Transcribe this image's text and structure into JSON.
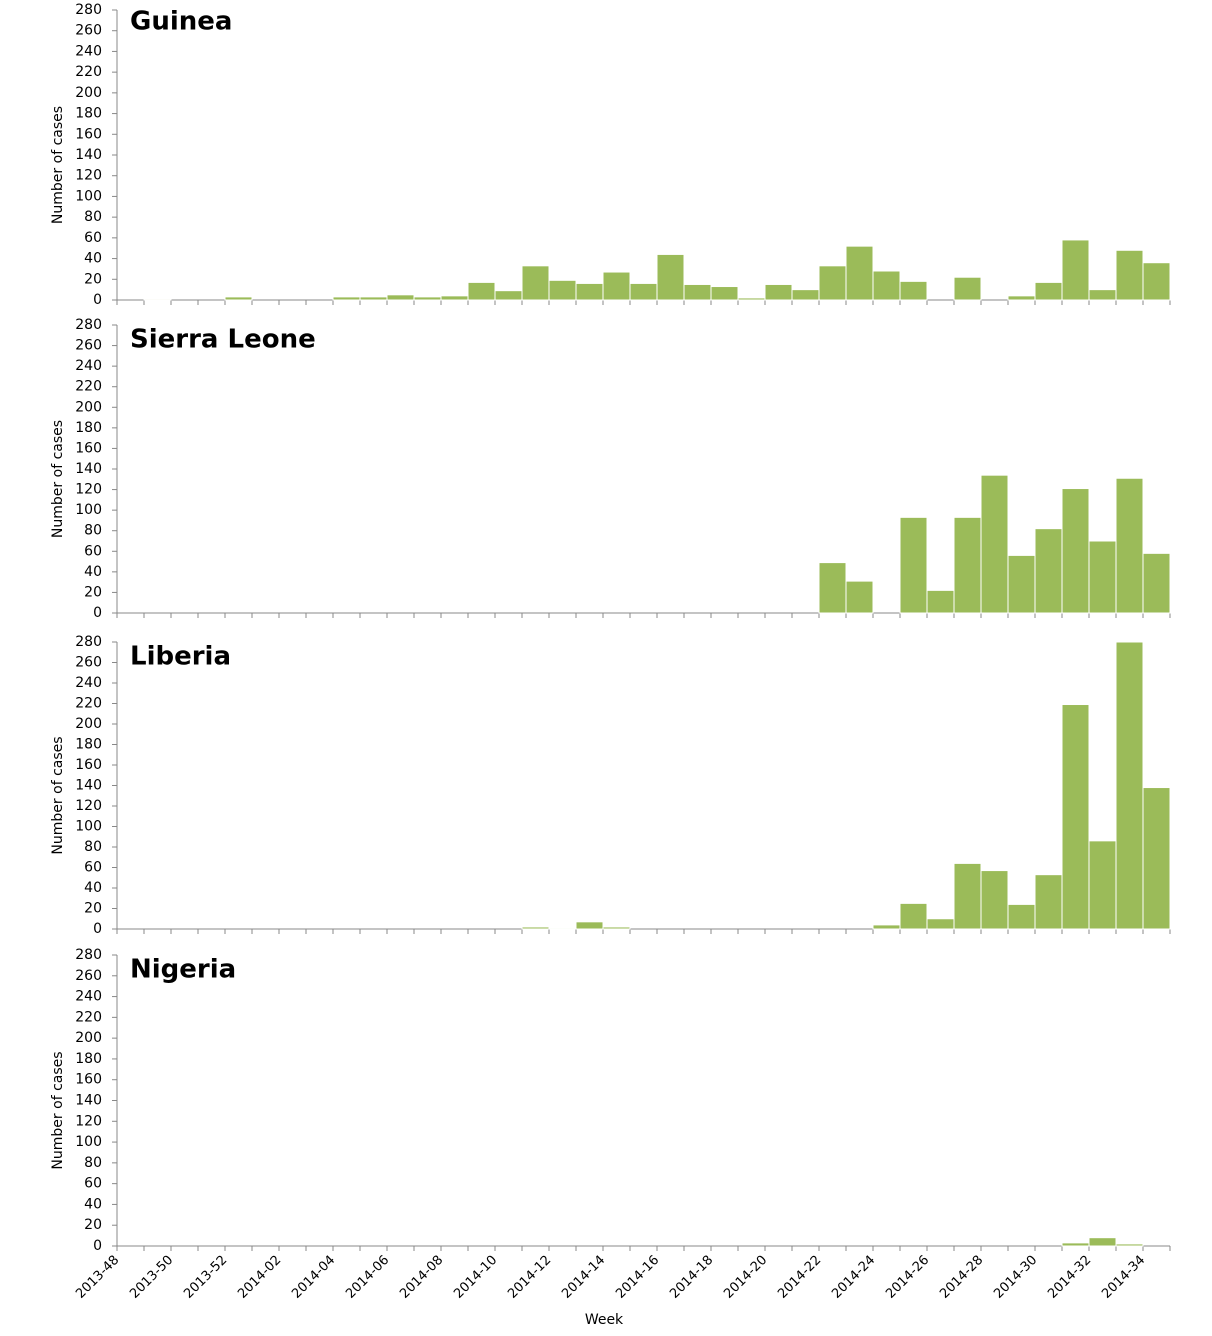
{
  "chart_data": [
    {
      "type": "bar",
      "title": "Guinea",
      "ylabel": "Number of cases",
      "color": "#9bbb59",
      "values": [
        0,
        1,
        0,
        0,
        3,
        0,
        0,
        0,
        3,
        3,
        5,
        3,
        4,
        17,
        9,
        33,
        19,
        16,
        27,
        16,
        44,
        15,
        13,
        2,
        15,
        10,
        33,
        52,
        28,
        18,
        0,
        22,
        0,
        4,
        17,
        58,
        10,
        48,
        36
      ],
      "ylim": [
        0,
        280
      ],
      "yticks": [
        0,
        20,
        40,
        60,
        80,
        100,
        120,
        140,
        160,
        180,
        200,
        220,
        240,
        260,
        280
      ]
    },
    {
      "type": "bar",
      "title": "Sierra Leone",
      "ylabel": "Number of cases",
      "color": "#9bbb59",
      "values": [
        0,
        0,
        0,
        0,
        0,
        0,
        0,
        0,
        0,
        0,
        0,
        0,
        0,
        0,
        0,
        0,
        0,
        0,
        0,
        0,
        0,
        0,
        0,
        0,
        0,
        0,
        49,
        31,
        0,
        93,
        22,
        93,
        134,
        56,
        82,
        121,
        70,
        131,
        58
      ],
      "ylim": [
        0,
        280
      ],
      "yticks": [
        0,
        20,
        40,
        60,
        80,
        100,
        120,
        140,
        160,
        180,
        200,
        220,
        240,
        260,
        280
      ]
    },
    {
      "type": "bar",
      "title": "Liberia",
      "ylabel": "Number of cases",
      "color": "#9bbb59",
      "values": [
        0,
        0,
        0,
        0,
        0,
        0,
        0,
        0,
        0,
        0,
        0,
        0,
        0,
        0,
        0,
        2,
        1,
        7,
        2,
        0,
        0,
        0,
        0,
        0,
        0,
        0,
        0,
        0,
        4,
        25,
        10,
        64,
        57,
        24,
        53,
        219,
        86,
        280,
        138
      ],
      "ylim": [
        0,
        280
      ],
      "yticks": [
        0,
        20,
        40,
        60,
        80,
        100,
        120,
        140,
        160,
        180,
        200,
        220,
        240,
        260,
        280
      ]
    },
    {
      "type": "bar",
      "title": "Nigeria",
      "ylabel": "Number of cases",
      "xlabel": "Week",
      "color": "#9bbb59",
      "categories": [
        "2013-48",
        null,
        "2013-50",
        null,
        "2013-52",
        null,
        "2014-02",
        null,
        "2014-04",
        null,
        "2014-06",
        null,
        "2014-08",
        null,
        "2014-10",
        null,
        "2014-12",
        null,
        "2014-14",
        null,
        "2014-16",
        null,
        "2014-18",
        null,
        "2014-20",
        null,
        "2014-22",
        null,
        "2014-24",
        null,
        "2014-26",
        null,
        "2014-28",
        null,
        "2014-30",
        null,
        "2014-32",
        null,
        "2014-34"
      ],
      "values": [
        0,
        0,
        0,
        0,
        0,
        0,
        0,
        0,
        0,
        0,
        0,
        0,
        0,
        0,
        0,
        0,
        0,
        0,
        0,
        0,
        0,
        0,
        0,
        0,
        0,
        0,
        0,
        0,
        0,
        0,
        0,
        0,
        0,
        0,
        0,
        3,
        8,
        2,
        0
      ],
      "ylim": [
        0,
        280
      ],
      "yticks": [
        0,
        20,
        40,
        60,
        80,
        100,
        120,
        140,
        160,
        180,
        200,
        220,
        240,
        260,
        280
      ]
    }
  ]
}
